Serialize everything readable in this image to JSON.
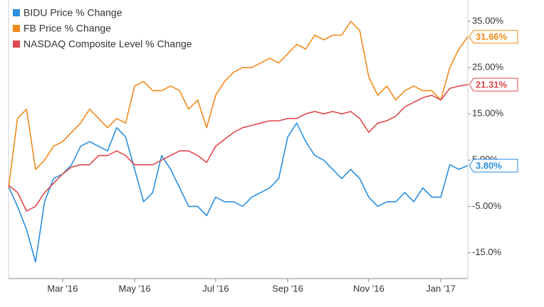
{
  "chart_data": {
    "type": "line",
    "categories": [
      null,
      null,
      null,
      null,
      null,
      null,
      "Mar '16",
      null,
      null,
      null,
      null,
      null,
      null,
      null,
      "May '16",
      null,
      null,
      null,
      null,
      null,
      null,
      null,
      null,
      "Jul '16",
      null,
      null,
      null,
      null,
      null,
      null,
      null,
      "Sep '16",
      null,
      null,
      null,
      null,
      null,
      null,
      null,
      null,
      "Nov '16",
      null,
      null,
      null,
      null,
      null,
      null,
      null,
      "Jan '17",
      null,
      null,
      null
    ],
    "series": [
      {
        "name": "BIDU Price % Change",
        "color": "#2a8fe0",
        "values": [
          -0.7,
          -5,
          -10,
          -17,
          -4,
          1,
          2,
          4,
          8,
          9,
          8,
          7,
          12,
          10,
          3,
          -4,
          -2,
          6,
          3,
          -1,
          -5,
          -5,
          -7,
          -3,
          -4,
          -4,
          -5,
          -3,
          -2,
          -1,
          1,
          10,
          13,
          9,
          6,
          5,
          3,
          1,
          3,
          1,
          -3,
          -5,
          -4,
          -4,
          -2,
          -4,
          -1,
          -3,
          -3,
          4,
          3,
          3.8
        ],
        "value_labels": [
          null,
          null,
          null,
          null,
          null,
          null,
          null,
          null,
          null,
          null,
          null,
          null,
          null,
          null,
          null,
          null,
          null,
          null,
          null,
          null,
          null,
          null,
          null,
          null,
          null,
          null,
          null,
          null,
          null,
          null,
          null,
          null,
          null,
          null,
          null,
          null,
          null,
          null,
          null,
          null,
          null,
          null,
          null,
          null,
          null,
          null,
          null,
          null,
          null,
          null,
          null,
          "3.80%"
        ]
      },
      {
        "name": "FB Price % Change",
        "color": "#f28a1c",
        "values": [
          -1,
          14,
          16,
          3,
          5,
          8,
          9,
          11,
          13,
          16,
          14,
          12,
          14,
          13,
          21,
          22,
          20,
          20,
          21,
          20,
          16,
          18,
          12,
          19,
          22,
          24,
          25,
          25,
          26,
          27,
          26,
          28,
          30,
          29,
          32,
          31,
          32,
          32,
          35,
          33,
          23,
          19,
          21,
          18,
          20,
          21,
          20,
          20,
          18,
          25,
          29,
          31.66
        ],
        "value_labels": [
          null,
          null,
          null,
          null,
          null,
          null,
          null,
          null,
          null,
          null,
          null,
          null,
          null,
          null,
          null,
          null,
          null,
          null,
          null,
          null,
          null,
          null,
          null,
          null,
          null,
          null,
          null,
          null,
          null,
          null,
          null,
          null,
          null,
          null,
          null,
          null,
          null,
          null,
          null,
          null,
          null,
          null,
          null,
          null,
          null,
          null,
          null,
          null,
          null,
          null,
          null,
          "31.66%"
        ]
      },
      {
        "name": "NASDAQ Composite Level % Change",
        "color": "#e0474c",
        "values": [
          -0.4,
          -2,
          -6,
          -5,
          -2,
          0,
          2,
          3.5,
          4,
          4,
          6,
          6,
          7,
          6,
          4,
          4,
          4,
          5,
          6,
          7,
          7,
          6,
          4.5,
          8,
          9.5,
          11,
          12,
          12.5,
          13,
          13.5,
          13.5,
          14,
          14,
          15,
          15.5,
          15,
          15.5,
          15,
          15.5,
          14,
          11,
          13,
          13.5,
          14.5,
          16.5,
          17.5,
          18.5,
          19,
          18,
          20.5,
          21,
          21.31
        ],
        "value_labels": [
          null,
          null,
          null,
          null,
          null,
          null,
          null,
          null,
          null,
          null,
          null,
          null,
          null,
          null,
          null,
          null,
          null,
          null,
          null,
          null,
          null,
          null,
          null,
          null,
          null,
          null,
          null,
          null,
          null,
          null,
          null,
          null,
          null,
          null,
          null,
          null,
          null,
          null,
          null,
          null,
          null,
          null,
          null,
          null,
          null,
          null,
          null,
          null,
          null,
          null,
          null,
          "21.31%"
        ]
      }
    ],
    "ylim": [
      -20.6,
      39.6
    ],
    "yticks": [
      {
        "value": -15,
        "label": "-15.0%"
      },
      {
        "value": -5,
        "label": "-5.00%"
      },
      {
        "value": 5,
        "label": "5.00%"
      },
      {
        "value": 15,
        "label": "15.00%"
      },
      {
        "value": 25,
        "label": "25.00%"
      },
      {
        "value": 35,
        "label": "35.00%"
      }
    ],
    "legend": "top-left",
    "grid": false
  }
}
